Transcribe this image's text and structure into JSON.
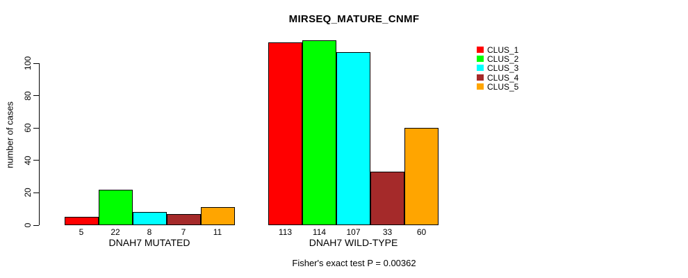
{
  "chart_data": {
    "type": "bar",
    "title": "MIRSEQ_MATURE_CNMF",
    "ylabel": "number of cases",
    "xlabel": "",
    "categories": [
      "DNAH7 MUTATED",
      "DNAH7 WILD-TYPE"
    ],
    "series": [
      {
        "name": "CLUS_1",
        "color": "#FF0000",
        "values": [
          5,
          113
        ]
      },
      {
        "name": "CLUS_2",
        "color": "#00FF00",
        "values": [
          22,
          114
        ]
      },
      {
        "name": "CLUS_3",
        "color": "#00FFFF",
        "values": [
          8,
          107
        ]
      },
      {
        "name": "CLUS_4",
        "color": "#A52A2A",
        "values": [
          7,
          33
        ]
      },
      {
        "name": "CLUS_5",
        "color": "#FFA500",
        "values": [
          11,
          60
        ]
      }
    ],
    "yticks": [
      0,
      20,
      40,
      60,
      80,
      100
    ],
    "ylim": [
      0,
      116
    ],
    "grid": false,
    "bar_value_labels_shown": true,
    "legend_position": "top-right-inside",
    "annotation": "Fisher's exact test P = 0.00362",
    "background_color": "#FFFFFF",
    "axis_color": "#000000"
  }
}
